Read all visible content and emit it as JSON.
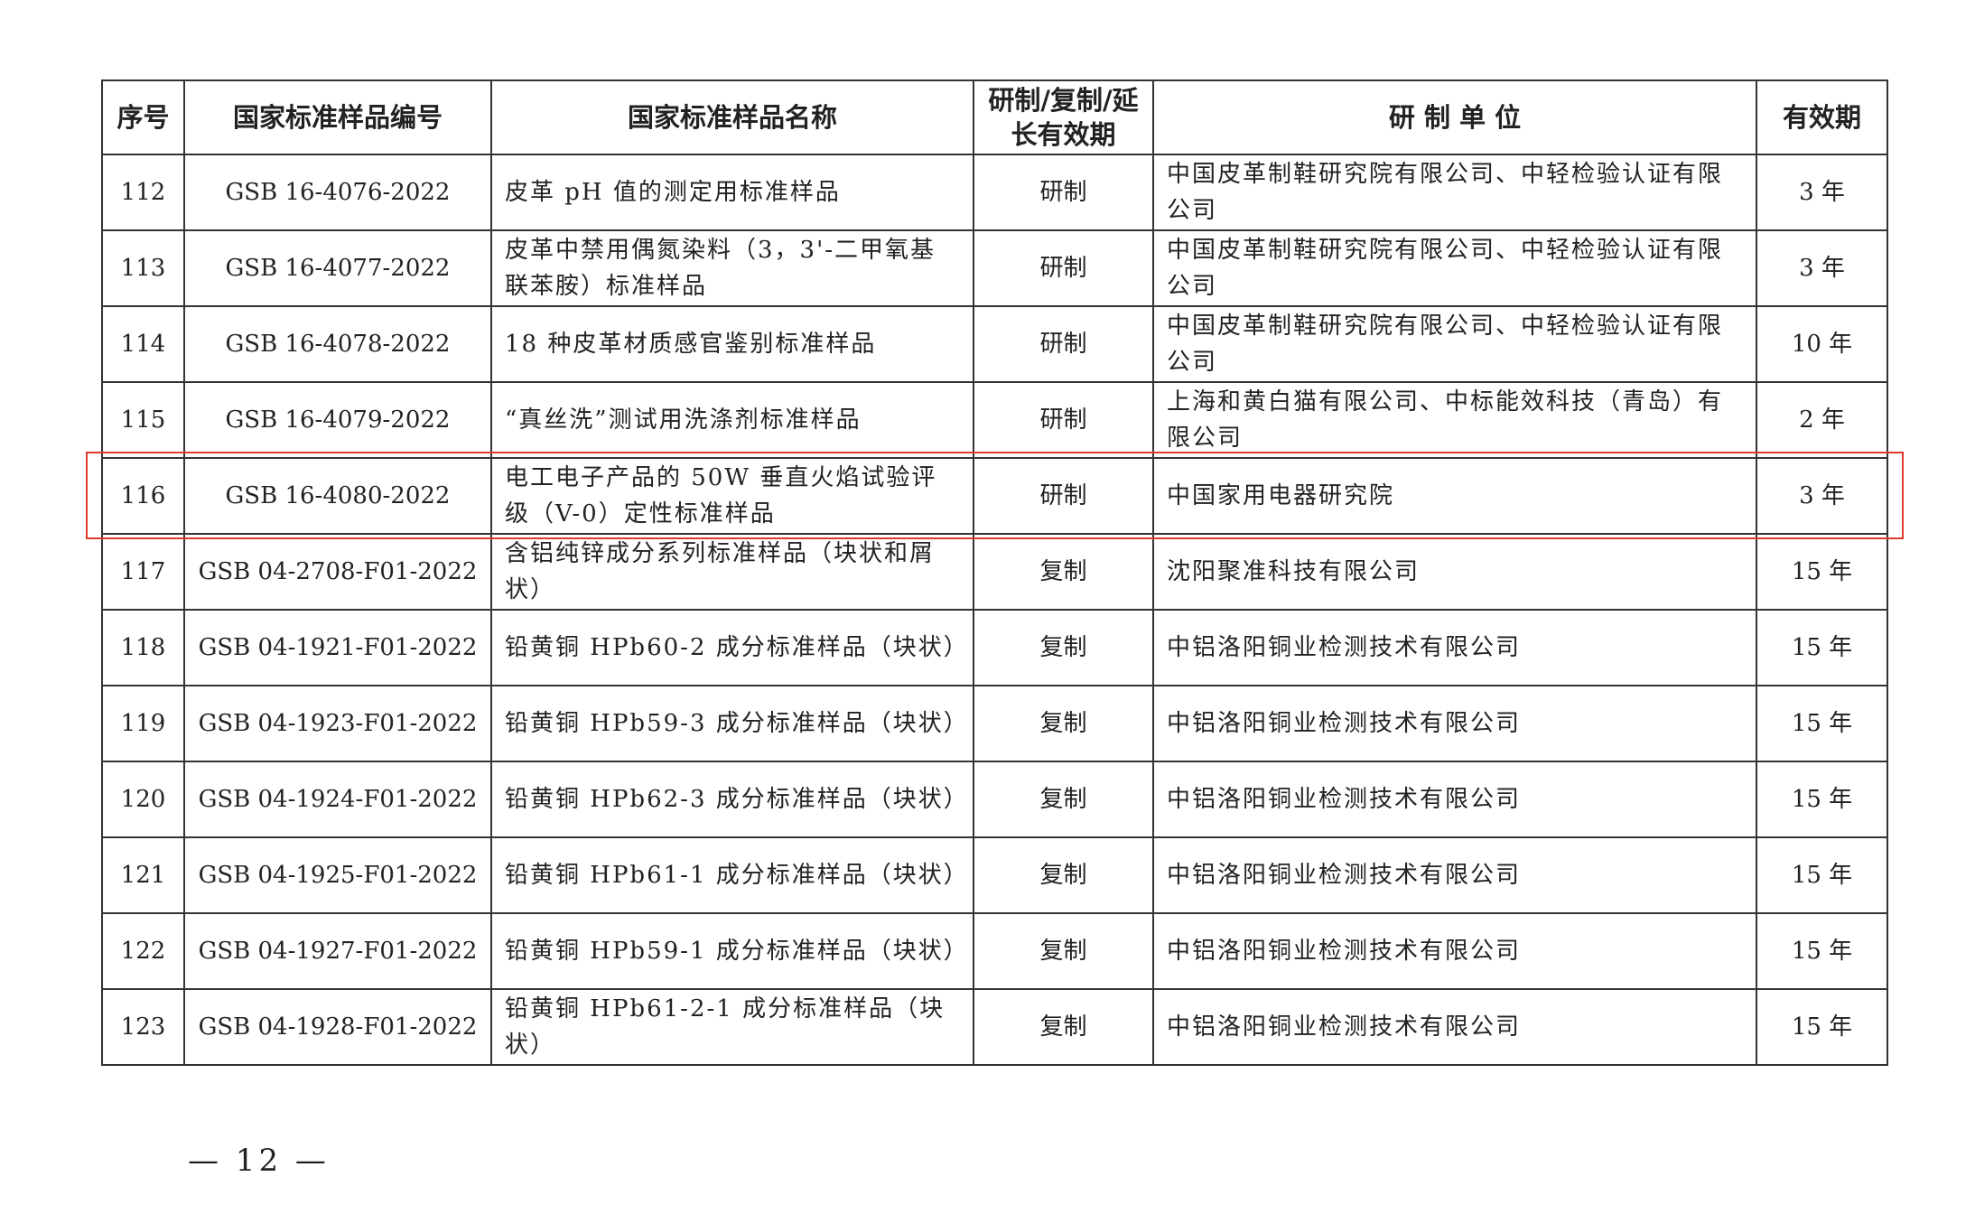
{
  "headers": [
    "序号",
    "国家标准样品编号",
    "国家标准样品名称",
    "研制/复制/延长有效期",
    "研 制 单 位",
    "有效期"
  ],
  "rows": [
    {
      "no": "112",
      "code": "GSB 16-4076-2022",
      "name": "皮革 pH 值的测定用标准样品",
      "type": "研制",
      "unit": "中国皮革制鞋研究院有限公司、中轻检验认证有限公司",
      "period": "3 年"
    },
    {
      "no": "113",
      "code": "GSB 16-4077-2022",
      "name": "皮革中禁用偶氮染料（3，3'-二甲氧基联苯胺）标准样品",
      "type": "研制",
      "unit": "中国皮革制鞋研究院有限公司、中轻检验认证有限公司",
      "period": "3 年"
    },
    {
      "no": "114",
      "code": "GSB 16-4078-2022",
      "name": "18 种皮革材质感官鉴别标准样品",
      "type": "研制",
      "unit": "中国皮革制鞋研究院有限公司、中轻检验认证有限公司",
      "period": "10 年"
    },
    {
      "no": "115",
      "code": "GSB 16-4079-2022",
      "name": "“真丝洗”测试用洗涤剂标准样品",
      "type": "研制",
      "unit": "上海和黄白猫有限公司、中标能效科技（青岛）有限公司",
      "period": "2 年"
    },
    {
      "no": "116",
      "code": "GSB 16-4080-2022",
      "name": "电工电子产品的 50W 垂直火焰试验评级（V-0）定性标准样品",
      "type": "研制",
      "unit": "中国家用电器研究院",
      "period": "3 年"
    },
    {
      "no": "117",
      "code": "GSB 04-2708-F01-2022",
      "name": "含铝纯锌成分系列标准样品（块状和屑状）",
      "type": "复制",
      "unit": "沈阳聚准科技有限公司",
      "period": "15 年"
    },
    {
      "no": "118",
      "code": "GSB 04-1921-F01-2022",
      "name": "铅黄铜 HPb60-2 成分标准样品（块状）",
      "type": "复制",
      "unit": "中铝洛阳铜业检测技术有限公司",
      "period": "15 年"
    },
    {
      "no": "119",
      "code": "GSB 04-1923-F01-2022",
      "name": "铅黄铜 HPb59-3 成分标准样品（块状）",
      "type": "复制",
      "unit": "中铝洛阳铜业检测技术有限公司",
      "period": "15 年"
    },
    {
      "no": "120",
      "code": "GSB 04-1924-F01-2022",
      "name": "铅黄铜 HPb62-3 成分标准样品（块状）",
      "type": "复制",
      "unit": "中铝洛阳铜业检测技术有限公司",
      "period": "15 年"
    },
    {
      "no": "121",
      "code": "GSB 04-1925-F01-2022",
      "name": "铅黄铜 HPb61-1 成分标准样品（块状）",
      "type": "复制",
      "unit": "中铝洛阳铜业检测技术有限公司",
      "period": "15 年"
    },
    {
      "no": "122",
      "code": "GSB 04-1927-F01-2022",
      "name": "铅黄铜 HPb59-1 成分标准样品（块状）",
      "type": "复制",
      "unit": "中铝洛阳铜业检测技术有限公司",
      "period": "15 年"
    },
    {
      "no": "123",
      "code": "GSB 04-1928-F01-2022",
      "name": "铅黄铜 HPb61-2-1 成分标准样品（块状）",
      "type": "复制",
      "unit": "中铝洛阳铜业检测技术有限公司",
      "period": "15 年"
    }
  ],
  "highlight_color": "#e03a2a",
  "page_number": "— 12 —"
}
